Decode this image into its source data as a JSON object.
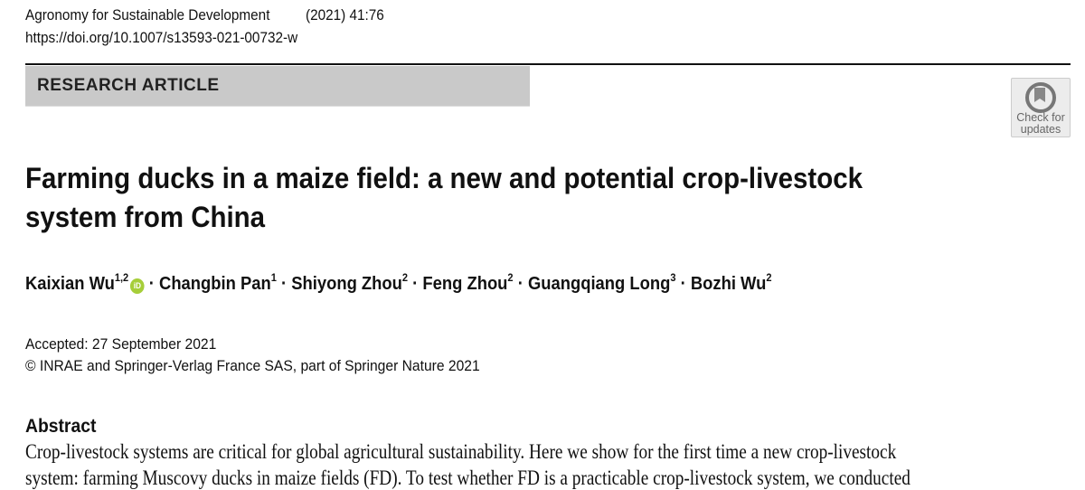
{
  "header": {
    "journal": "Agronomy for Sustainable Development",
    "citation": "(2021) 41:76",
    "doi": "https://doi.org/10.1007/s13593-021-00732-w"
  },
  "article_type": "RESEARCH ARTICLE",
  "check_for_updates": {
    "line1": "Check for",
    "line2": "updates"
  },
  "title": {
    "line1": "Farming ducks in a maize field: a new and potential crop-livestock",
    "line2": "system from China"
  },
  "authors": [
    {
      "name": "Kaixian Wu",
      "aff": "1,2",
      "orcid": true
    },
    {
      "name": "Changbin Pan",
      "aff": "1"
    },
    {
      "name": "Shiyong Zhou",
      "aff": "2"
    },
    {
      "name": "Feng Zhou",
      "aff": "2"
    },
    {
      "name": "Guangqiang Long",
      "aff": "3"
    },
    {
      "name": "Bozhi Wu",
      "aff": "2"
    }
  ],
  "orcid_label": "iD",
  "author_separator": "·",
  "accepted": "Accepted: 27 September 2021",
  "copyright": "© INRAE and Springer-Verlag France SAS, part of Springer Nature 2021",
  "abstract": {
    "heading": "Abstract",
    "lines": [
      "Crop-livestock systems are critical for global agricultural sustainability. Here we show for the first time a new crop-livestock",
      "system: farming Muscovy ducks in maize fields (FD). To test whether FD is a practicable crop-livestock system, we conducted"
    ]
  },
  "colors": {
    "banner": "#c9c9c9",
    "orcid": "#a6ce39"
  }
}
